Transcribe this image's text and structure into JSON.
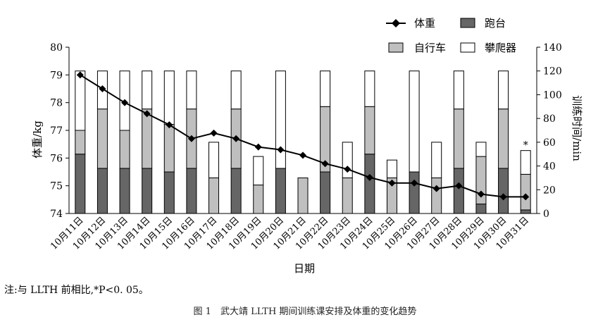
{
  "chart_data": {
    "type": "bar",
    "categories": [
      "10月11日",
      "10月12日",
      "10月13日",
      "10月14日",
      "10月15日",
      "10月16日",
      "10月17日",
      "10月18日",
      "10月19日",
      "10月20日",
      "10月21日",
      "10月22日",
      "10月23日",
      "10月24日",
      "10月25日",
      "10月26日",
      "10月27日",
      "10月28日",
      "10月29日",
      "10月30日",
      "10月31日"
    ],
    "stacked_series": [
      {
        "name": "跑台",
        "color": "#666666",
        "values": [
          50,
          38,
          38,
          38,
          35,
          38,
          0,
          38,
          0,
          38,
          0,
          35,
          0,
          50,
          0,
          35,
          0,
          38,
          8,
          38,
          3
        ]
      },
      {
        "name": "自行车",
        "color": "#bfbfbf",
        "values": [
          20,
          50,
          32,
          50,
          40,
          50,
          30,
          50,
          24,
          0,
          30,
          55,
          30,
          40,
          30,
          0,
          30,
          50,
          40,
          50,
          30
        ]
      },
      {
        "name": "攀爬器",
        "color": "#ffffff",
        "values": [
          50,
          32,
          50,
          32,
          45,
          32,
          30,
          32,
          24,
          82,
          0,
          30,
          30,
          30,
          15,
          85,
          30,
          32,
          12,
          32,
          20
        ]
      }
    ],
    "line_series": {
      "name": "体重",
      "color": "#000000",
      "values": [
        79.0,
        78.5,
        78.0,
        77.6,
        77.2,
        76.7,
        76.9,
        76.7,
        76.4,
        76.3,
        76.1,
        75.8,
        75.6,
        75.3,
        75.1,
        75.1,
        74.9,
        75.0,
        74.7,
        74.6,
        74.6
      ]
    },
    "annotation": {
      "category_index": 20,
      "text": "*"
    },
    "xlabel": "日期",
    "ylabel_left": "体重/kg",
    "ylabel_right": "训练时间/min",
    "ylim_left": [
      74,
      80
    ],
    "yticks_left": [
      74,
      75,
      76,
      77,
      78,
      79,
      80
    ],
    "ylim_right": [
      0,
      140
    ],
    "yticks_right": [
      0,
      20,
      40,
      60,
      80,
      100,
      120,
      140
    ],
    "legend_placement": "top-right",
    "grid": false
  },
  "note": "注:与 LLTH 前相比,*P<0. 05。",
  "caption": "图 1　武大靖 LLTH 期间训练课安排及体重的变化趋势"
}
